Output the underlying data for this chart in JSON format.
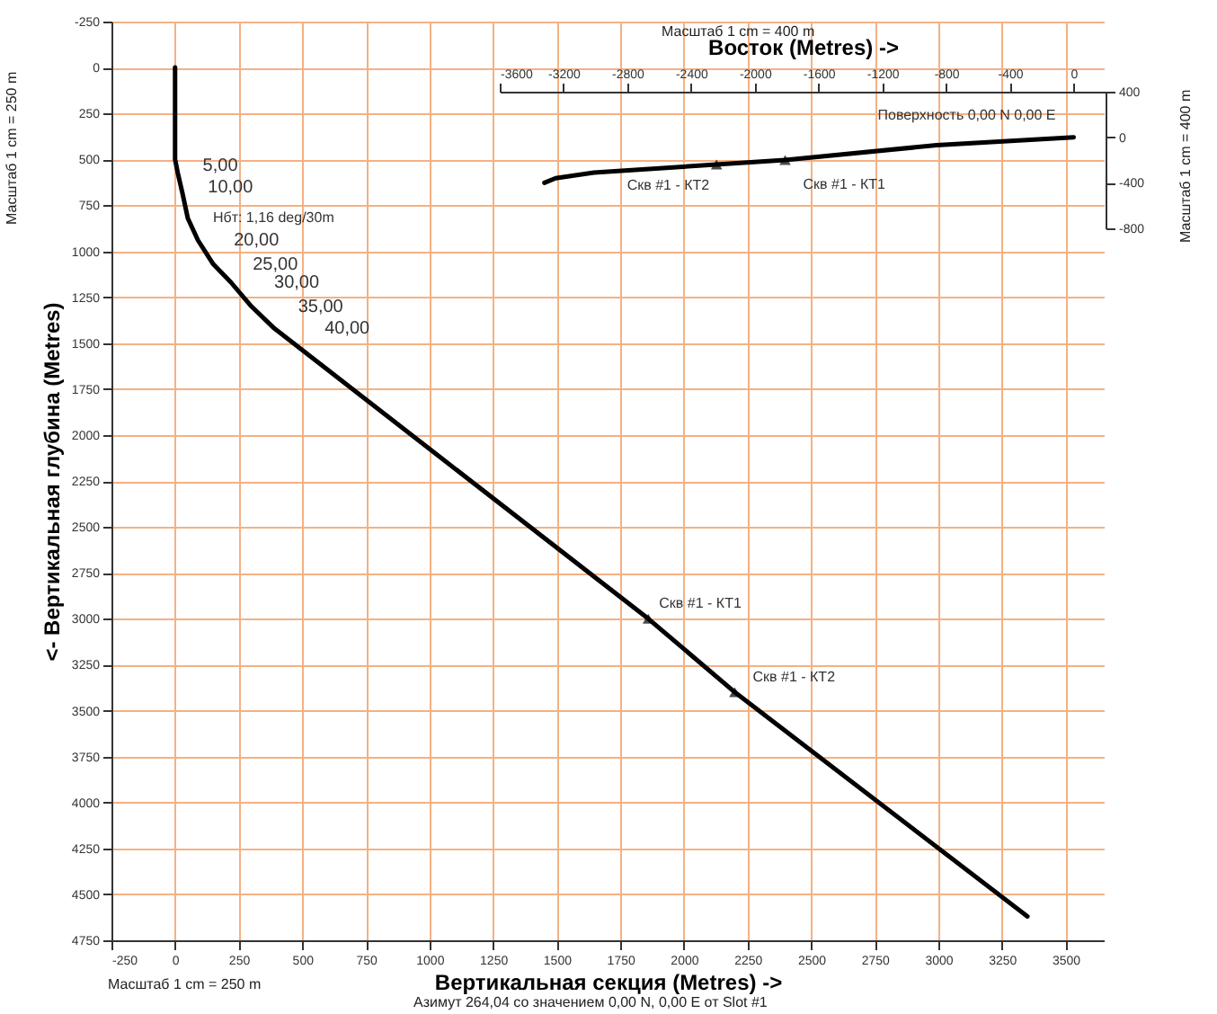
{
  "chart_data": [
    {
      "type": "line",
      "xlabel": "Вертикальная секция (Metres) ->",
      "ylabel": "<- Вертикальная глубина (Metres)",
      "xlim": [
        -250,
        3650
      ],
      "xticks": [
        -250,
        0,
        250,
        500,
        750,
        1000,
        1250,
        1500,
        1750,
        2000,
        2250,
        2500,
        2750,
        3000,
        3250,
        3500
      ],
      "ylim": [
        4750,
        -250
      ],
      "yticks": [
        -250,
        0,
        250,
        500,
        750,
        1000,
        1250,
        1500,
        1750,
        2000,
        2250,
        2500,
        2750,
        3000,
        3250,
        3500,
        3750,
        4000,
        4250,
        4500,
        4750
      ],
      "grid": true,
      "series": [
        {
          "color": "#000000",
          "x": [
            0,
            0,
            0,
            10,
            30,
            50,
            90,
            150,
            220,
            300,
            390,
            1860,
            2200,
            3350
          ],
          "values": [
            0,
            300,
            500,
            570,
            690,
            820,
            940,
            1070,
            1170,
            1300,
            1420,
            3000,
            3400,
            4620
          ]
        },
        {
          "type": "scatter",
          "marker": "triangle",
          "color": "#000000",
          "x": [
            1860,
            2200
          ],
          "values": [
            3000,
            3400
          ]
        }
      ],
      "annotations": [
        "Масштаб 1 cm = 250 m",
        "Масштаб 1 cm = 250 m",
        "Азимут 264,04 со значением 0,00 N, 0,00 E от Slot #1",
        {
          "text": "5,00",
          "x": 10,
          "y": 570
        },
        {
          "text": "10,00",
          "x": 30,
          "y": 690
        },
        {
          "text": "Нбт: 1,16 deg/30m",
          "x": 50,
          "y": 820
        },
        {
          "text": "20,00",
          "x": 90,
          "y": 940
        },
        {
          "text": "25,00",
          "x": 150,
          "y": 1070
        },
        {
          "text": "30,00",
          "x": 220,
          "y": 1170
        },
        {
          "text": "35,00",
          "x": 300,
          "y": 1300
        },
        {
          "text": "40,00",
          "x": 390,
          "y": 1420
        },
        {
          "text": "Скв #1 - КТ1",
          "x": 1860,
          "y": 3000
        },
        {
          "text": "Скв #1 - КТ2",
          "x": 2200,
          "y": 3400
        }
      ]
    },
    {
      "type": "line",
      "xlabel": "Восток (Metres) ->",
      "xlim": [
        -3600,
        200
      ],
      "xticks": [
        -3600,
        -3200,
        -2800,
        -2400,
        -2000,
        -1600,
        -1200,
        -800,
        -400,
        0
      ],
      "ylim": [
        -800,
        400
      ],
      "yticks": [
        -800,
        -400,
        0,
        400
      ],
      "series": [
        {
          "color": "#000000",
          "x": [
            0,
            -860,
            -1810,
            -3010,
            -3250,
            -3320
          ],
          "values": [
            0,
            -70,
            -200,
            -310,
            -360,
            -400
          ]
        },
        {
          "type": "scatter",
          "marker": "triangle",
          "color": "#000000",
          "x": [
            -1810,
            -2240
          ],
          "values": [
            -200,
            -240
          ]
        }
      ],
      "annotations": [
        "Масштаб 1 cm = 400 m",
        "Масштаб 1 cm = 400 m",
        {
          "text": "Поверхность 0,00 N 0,00 E",
          "x": 0,
          "y": 0
        },
        {
          "text": "Скв #1 - КТ1",
          "x": -1810,
          "y": -200
        },
        {
          "text": "Скв #1 - КТ2",
          "x": -2240,
          "y": -240
        }
      ]
    }
  ]
}
